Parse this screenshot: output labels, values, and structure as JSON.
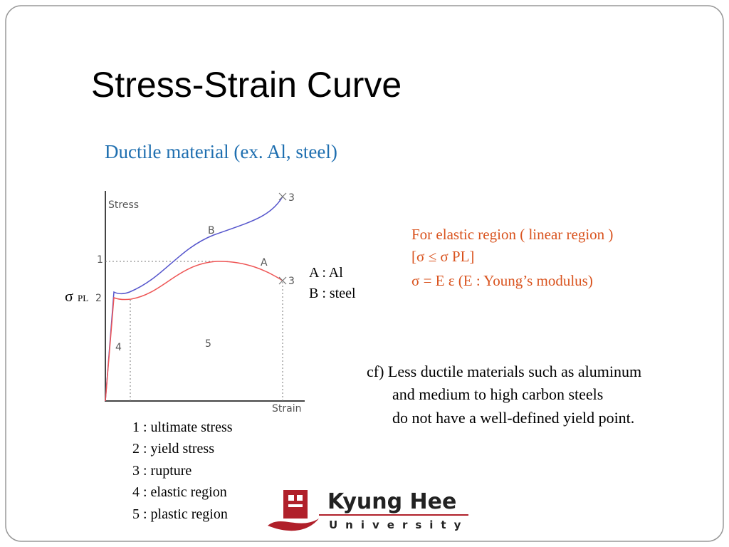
{
  "title": "Stress-Strain  Curve",
  "subtitle": "Ductile material (ex. Al, steel)",
  "diagram": {
    "y_label": "Stress",
    "x_label": "Strain",
    "curve_a": "A",
    "curve_b": "B",
    "point_1": "1",
    "point_2": "2",
    "point_3_b": "3",
    "point_3_a": "3",
    "region_4": "4",
    "region_5": "5",
    "sigma": "σ",
    "sigma_sub": "PL"
  },
  "legend_ab": [
    "A : Al",
    "B : steel"
  ],
  "notes": [
    "For elastic region ( linear region )",
    "[σ ≤  σ PL]",
    "σ = E ε  (E : Young’s modulus)"
  ],
  "cf": [
    "cf) Less ductile materials such as aluminum",
    "and medium to high carbon steels",
    "do not have a well-defined yield point."
  ],
  "key": [
    "1 : ultimate stress",
    "2 : yield stress",
    "3 : rupture",
    "4 : elastic region",
    "5 : plastic region"
  ],
  "logo": {
    "name": "Kyung Hee",
    "sub": "University"
  }
}
